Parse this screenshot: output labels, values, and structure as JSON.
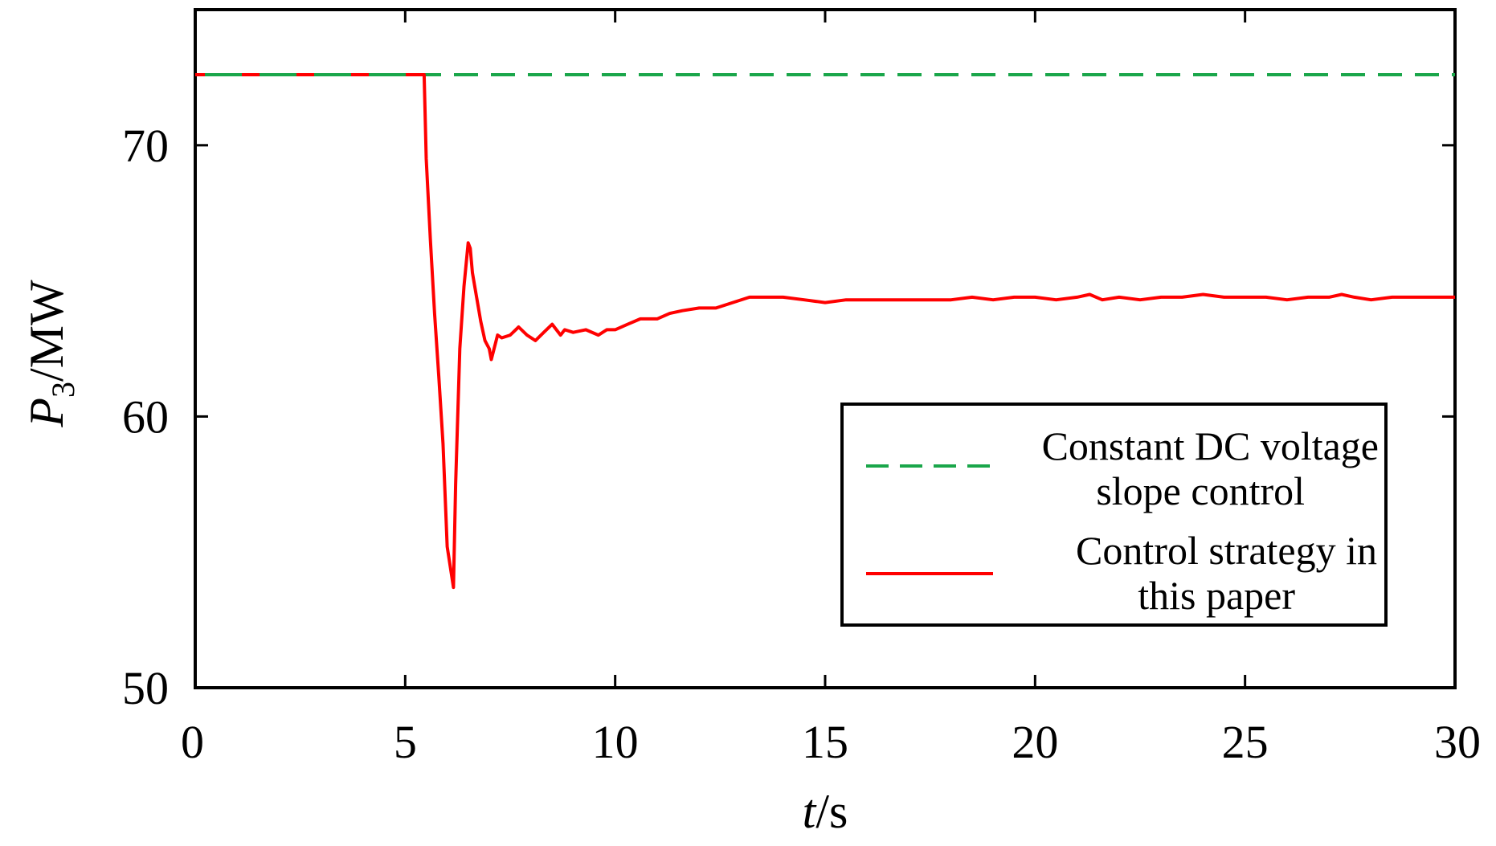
{
  "chart_data": {
    "type": "line",
    "x_label": {
      "italic": "t",
      "unit": "/s"
    },
    "y_label": {
      "italic": "P",
      "subscript": "3",
      "unit": "/MW"
    },
    "x_range": [
      0,
      30
    ],
    "y_range": [
      50,
      75
    ],
    "x_ticks": [
      0,
      5,
      10,
      15,
      20,
      25,
      30
    ],
    "y_ticks": [
      50,
      60,
      70
    ],
    "grid": false,
    "legend": {
      "position": "bottom-right",
      "items": [
        {
          "lines": [
            "Constant DC voltage",
            "slope control"
          ],
          "color": "#1aa64a",
          "style": "dashed"
        },
        {
          "lines": [
            "Control strategy in",
            "this paper"
          ],
          "color": "#ff0000",
          "style": "solid"
        }
      ]
    },
    "series": [
      {
        "color": "#1aa64a",
        "style": "dashed",
        "x": [
          0,
          30
        ],
        "y": [
          72.6,
          72.6
        ]
      },
      {
        "color": "#ff0000",
        "style": "solid",
        "x": [
          0,
          5.3,
          5.45,
          5.5,
          5.6,
          5.7,
          5.8,
          5.9,
          6.0,
          6.1,
          6.15,
          6.2,
          6.3,
          6.4,
          6.5,
          6.55,
          6.6,
          6.7,
          6.8,
          6.9,
          7.0,
          7.05,
          7.1,
          7.2,
          7.3,
          7.5,
          7.7,
          7.9,
          8.1,
          8.3,
          8.5,
          8.7,
          8.8,
          9.0,
          9.3,
          9.6,
          9.8,
          10.0,
          10.3,
          10.6,
          11.0,
          11.3,
          11.6,
          12.0,
          12.4,
          12.8,
          13.2,
          13.6,
          14.0,
          14.5,
          15.0,
          15.5,
          16.0,
          16.5,
          17.0,
          17.5,
          18.0,
          18.5,
          19.0,
          19.5,
          20.0,
          20.5,
          21.0,
          21.3,
          21.6,
          22.0,
          22.5,
          23.0,
          23.5,
          24.0,
          24.5,
          25.0,
          25.5,
          26.0,
          26.5,
          27.0,
          27.3,
          27.6,
          28.0,
          28.5,
          29.0,
          29.5,
          29.8,
          30.0
        ],
        "y": [
          72.6,
          72.6,
          72.6,
          69.5,
          66.5,
          63.8,
          61.5,
          59.0,
          55.2,
          54.2,
          53.7,
          57.5,
          62.5,
          64.8,
          66.4,
          66.2,
          65.3,
          64.4,
          63.5,
          62.8,
          62.5,
          62.1,
          62.4,
          63.0,
          62.9,
          63.0,
          63.3,
          63.0,
          62.8,
          63.1,
          63.4,
          63.0,
          63.2,
          63.1,
          63.2,
          63.0,
          63.2,
          63.2,
          63.4,
          63.6,
          63.6,
          63.8,
          63.9,
          64.0,
          64.0,
          64.2,
          64.4,
          64.4,
          64.4,
          64.3,
          64.2,
          64.3,
          64.3,
          64.3,
          64.3,
          64.3,
          64.3,
          64.4,
          64.3,
          64.4,
          64.4,
          64.3,
          64.4,
          64.5,
          64.3,
          64.4,
          64.3,
          64.4,
          64.4,
          64.5,
          64.4,
          64.4,
          64.4,
          64.3,
          64.4,
          64.4,
          64.5,
          64.4,
          64.3,
          64.4,
          64.4,
          64.4,
          64.4,
          64.4
        ]
      }
    ]
  }
}
